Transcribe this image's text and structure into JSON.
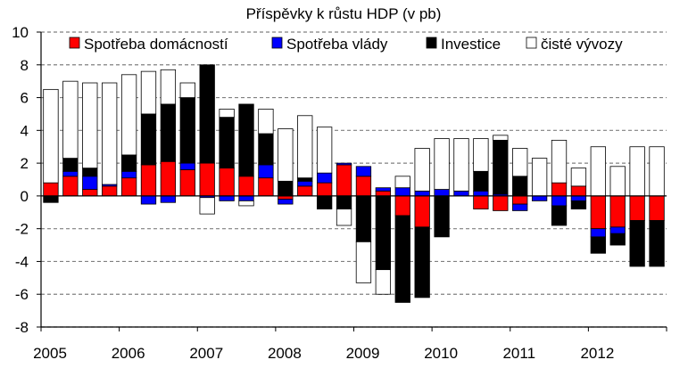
{
  "chart_data": {
    "type": "bar",
    "stacked": true,
    "title": "Příspěvky k růstu HDP (v pb)",
    "xlabel": "",
    "ylabel": "",
    "ylim": [
      -8,
      10
    ],
    "yticks": [
      -8,
      -6,
      -4,
      -2,
      0,
      2,
      4,
      6,
      8,
      10
    ],
    "grid": true,
    "legend_position": "top",
    "year_labels": [
      "2005",
      "2006",
      "2007",
      "2008",
      "2009",
      "2010",
      "2011",
      "2012"
    ],
    "categories": [
      "2005 Q1",
      "2005 Q2",
      "2005 Q3",
      "2005 Q4",
      "2006 Q1",
      "2006 Q2",
      "2006 Q3",
      "2006 Q4",
      "2007 Q1",
      "2007 Q2",
      "2007 Q3",
      "2007 Q4",
      "2008 Q1",
      "2008 Q2",
      "2008 Q3",
      "2008 Q4",
      "2009 Q1",
      "2009 Q2",
      "2009 Q3",
      "2009 Q4",
      "2010 Q1",
      "2010 Q2",
      "2010 Q3",
      "2010 Q4",
      "2011 Q1",
      "2011 Q2",
      "2011 Q3",
      "2011 Q4",
      "2012 Q1",
      "2012 Q2",
      "2012 Q3",
      "2012 Q4"
    ],
    "series": [
      {
        "name": "Spotřeba domácností",
        "color": "#ff0000",
        "values": [
          0.8,
          1.2,
          0.4,
          0.6,
          1.1,
          1.9,
          2.1,
          1.6,
          2.0,
          1.7,
          1.2,
          1.1,
          -0.2,
          0.6,
          0.8,
          1.9,
          1.2,
          0.3,
          -1.2,
          -1.9,
          0.0,
          0.0,
          -0.8,
          -0.9,
          -0.5,
          0.0,
          0.8,
          0.6,
          -2.0,
          -1.9,
          -1.5,
          -1.5
        ]
      },
      {
        "name": "Spotřeba vlády",
        "color": "#0000ff",
        "values": [
          0.0,
          0.3,
          0.8,
          0.1,
          0.4,
          -0.5,
          -0.4,
          0.4,
          -0.1,
          -0.3,
          -0.3,
          0.8,
          -0.3,
          0.3,
          0.6,
          0.1,
          0.6,
          0.2,
          0.5,
          0.3,
          0.4,
          0.3,
          0.3,
          0.1,
          -0.4,
          -0.3,
          -0.6,
          -0.3,
          -0.5,
          -0.4,
          0.0,
          0.0
        ]
      },
      {
        "name": "Investice",
        "color": "#000000",
        "values": [
          -0.4,
          0.8,
          0.5,
          0.0,
          1.0,
          3.1,
          3.5,
          4.0,
          6.0,
          3.1,
          4.4,
          1.9,
          0.9,
          0.2,
          -0.8,
          -0.8,
          -2.8,
          -4.5,
          -5.3,
          -4.3,
          -2.5,
          0.0,
          1.2,
          3.3,
          1.2,
          0.0,
          -1.2,
          -0.5,
          -1.0,
          -0.7,
          -2.8,
          -2.8
        ]
      },
      {
        "name": "čisté vývozy",
        "color": "#ffffff",
        "values": [
          5.7,
          4.7,
          5.2,
          6.2,
          4.9,
          2.6,
          2.1,
          0.9,
          -1.0,
          0.5,
          -0.3,
          1.5,
          3.2,
          3.8,
          2.8,
          -1.0,
          -2.5,
          -1.5,
          0.7,
          2.6,
          3.1,
          3.2,
          2.0,
          0.3,
          1.7,
          2.3,
          2.6,
          1.1,
          3.0,
          1.8,
          3.0,
          3.0
        ]
      }
    ]
  }
}
